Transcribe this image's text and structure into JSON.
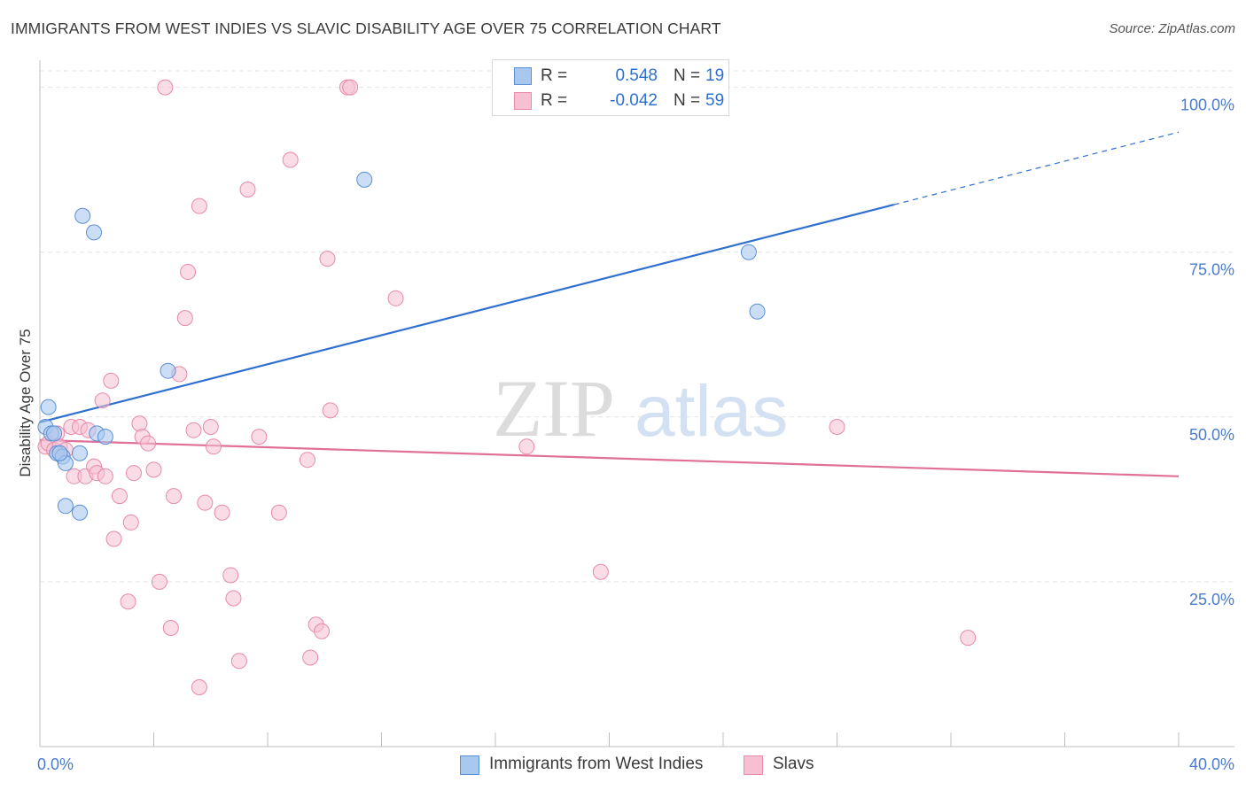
{
  "header": {
    "title": "IMMIGRANTS FROM WEST INDIES VS SLAVIC DISABILITY AGE OVER 75 CORRELATION CHART",
    "source": "Source: ZipAtlas.com"
  },
  "watermark": {
    "zip": "ZIP",
    "atlas": "atlas"
  },
  "legend": {
    "rows": [
      {
        "r_label": "R =",
        "r_value": "0.548",
        "n_label": "N =",
        "n_value": "19"
      },
      {
        "r_label": "R =",
        "r_value": "-0.042",
        "n_label": "N =",
        "n_value": "59"
      }
    ]
  },
  "bottom_legend": [
    "Immigrants from West Indies",
    "Slavs"
  ],
  "chart_data": {
    "type": "scatter",
    "title": "IMMIGRANTS FROM WEST INDIES VS SLAVIC DISABILITY AGE OVER 75 CORRELATION CHART",
    "xlabel": "",
    "ylabel": "Disability Age Over 75",
    "xlim": [
      0,
      40
    ],
    "ylim": [
      0,
      102.5
    ],
    "x_tick_labels": [
      "0.0%",
      "40.0%"
    ],
    "y_ticks": [
      25,
      50,
      75,
      100
    ],
    "y_tick_labels": [
      "25.0%",
      "50.0%",
      "75.0%",
      "100.0%"
    ],
    "grid": true,
    "legend_position": "top-center",
    "colors": {
      "blue_fill": "#a9c8f0",
      "blue_stroke": "#5b8fd6",
      "blue_line": "#2f6fd0",
      "pink_fill": "#f6c0d2",
      "pink_stroke": "#e88aa8",
      "pink_line": "#e07097"
    },
    "series": [
      {
        "name": "Immigrants from West Indies",
        "color": "blue",
        "points": [
          [
            0.2,
            48.5
          ],
          [
            0.3,
            51.5
          ],
          [
            0.4,
            47.5
          ],
          [
            0.6,
            44.5
          ],
          [
            0.8,
            44.0
          ],
          [
            0.9,
            43.0
          ],
          [
            0.9,
            36.5
          ],
          [
            1.4,
            35.5
          ],
          [
            1.4,
            44.5
          ],
          [
            1.5,
            80.5
          ],
          [
            1.9,
            78.0
          ],
          [
            2.0,
            47.5
          ],
          [
            2.3,
            47.0
          ],
          [
            4.5,
            57.0
          ],
          [
            11.4,
            86.0
          ],
          [
            24.9,
            75.0
          ],
          [
            25.2,
            66.0
          ],
          [
            0.5,
            47.5
          ],
          [
            0.7,
            44.5
          ]
        ],
        "trend": {
          "x": [
            0,
            30
          ],
          "y": [
            49.2,
            82.2
          ],
          "dashed_to": [
            40,
            93.2
          ]
        }
      },
      {
        "name": "Slavs",
        "color": "pink",
        "points": [
          [
            0.2,
            45.5
          ],
          [
            0.3,
            46.0
          ],
          [
            0.5,
            45.0
          ],
          [
            0.6,
            47.5
          ],
          [
            0.7,
            45.5
          ],
          [
            0.9,
            45.0
          ],
          [
            1.1,
            48.5
          ],
          [
            1.2,
            41.0
          ],
          [
            1.4,
            48.5
          ],
          [
            1.6,
            41.0
          ],
          [
            1.7,
            48.0
          ],
          [
            1.9,
            42.5
          ],
          [
            2.0,
            41.5
          ],
          [
            2.2,
            52.5
          ],
          [
            2.3,
            41.0
          ],
          [
            2.5,
            55.5
          ],
          [
            2.6,
            31.5
          ],
          [
            2.8,
            38.0
          ],
          [
            3.1,
            22.0
          ],
          [
            3.2,
            34.0
          ],
          [
            3.3,
            41.5
          ],
          [
            3.5,
            49.0
          ],
          [
            3.6,
            47.0
          ],
          [
            3.8,
            46.0
          ],
          [
            4.0,
            42.0
          ],
          [
            4.2,
            25.0
          ],
          [
            4.4,
            100.0
          ],
          [
            4.6,
            18.0
          ],
          [
            4.7,
            38.0
          ],
          [
            4.9,
            56.5
          ],
          [
            5.1,
            65.0
          ],
          [
            5.2,
            72.0
          ],
          [
            5.4,
            48.0
          ],
          [
            5.6,
            9.0
          ],
          [
            5.6,
            82.0
          ],
          [
            5.8,
            37.0
          ],
          [
            6.0,
            48.5
          ],
          [
            6.1,
            45.5
          ],
          [
            6.4,
            35.5
          ],
          [
            6.7,
            26.0
          ],
          [
            6.8,
            22.5
          ],
          [
            7.0,
            13.0
          ],
          [
            7.3,
            84.5
          ],
          [
            7.7,
            47.0
          ],
          [
            8.4,
            35.5
          ],
          [
            8.8,
            89.0
          ],
          [
            9.4,
            43.5
          ],
          [
            9.5,
            13.5
          ],
          [
            9.7,
            18.5
          ],
          [
            9.9,
            17.5
          ],
          [
            10.1,
            74.0
          ],
          [
            10.2,
            51.0
          ],
          [
            10.8,
            100.0
          ],
          [
            10.9,
            100.0
          ],
          [
            12.5,
            68.0
          ],
          [
            17.1,
            45.5
          ],
          [
            19.7,
            26.5
          ],
          [
            28.0,
            48.5
          ],
          [
            32.6,
            16.5
          ]
        ],
        "trend": {
          "x": [
            0,
            40
          ],
          "y": [
            46.5,
            41.0
          ]
        }
      }
    ]
  }
}
